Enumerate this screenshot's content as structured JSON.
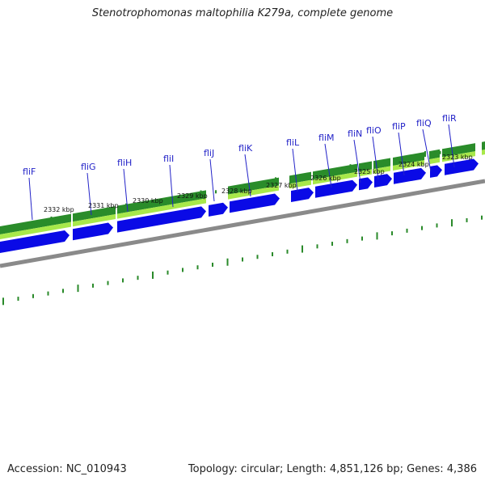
{
  "title": "Stenotrophomonas maltophilia K279a, complete genome",
  "footer": {
    "accession": "Accession: NC_010943",
    "summary": "Topology: circular; Length: 4,851,126 bp; Genes: 4,386"
  },
  "colors": {
    "cds": "#0a0ae6",
    "gene_dark": "#2a8c2a",
    "gene_light": "#a8e84a",
    "backbone": "#8a8a8a",
    "tick": "#2a8a2a",
    "label": "#2323c8"
  },
  "gene_labels": [
    "fliF",
    "fliG",
    "fliH",
    "fliI",
    "fliJ",
    "fliK",
    "fliL",
    "fliM",
    "fliN",
    "fliO",
    "fliP",
    "fliQ",
    "fliR"
  ],
  "ruler_labels": [
    "2332 kbp",
    "2331 kbp",
    "2330 kbp",
    "2329 kbp",
    "2328 kbp",
    "2327 kbp",
    "2326 kbp",
    "2325 kbp",
    "2324 kbp",
    "2323 kbp"
  ]
}
